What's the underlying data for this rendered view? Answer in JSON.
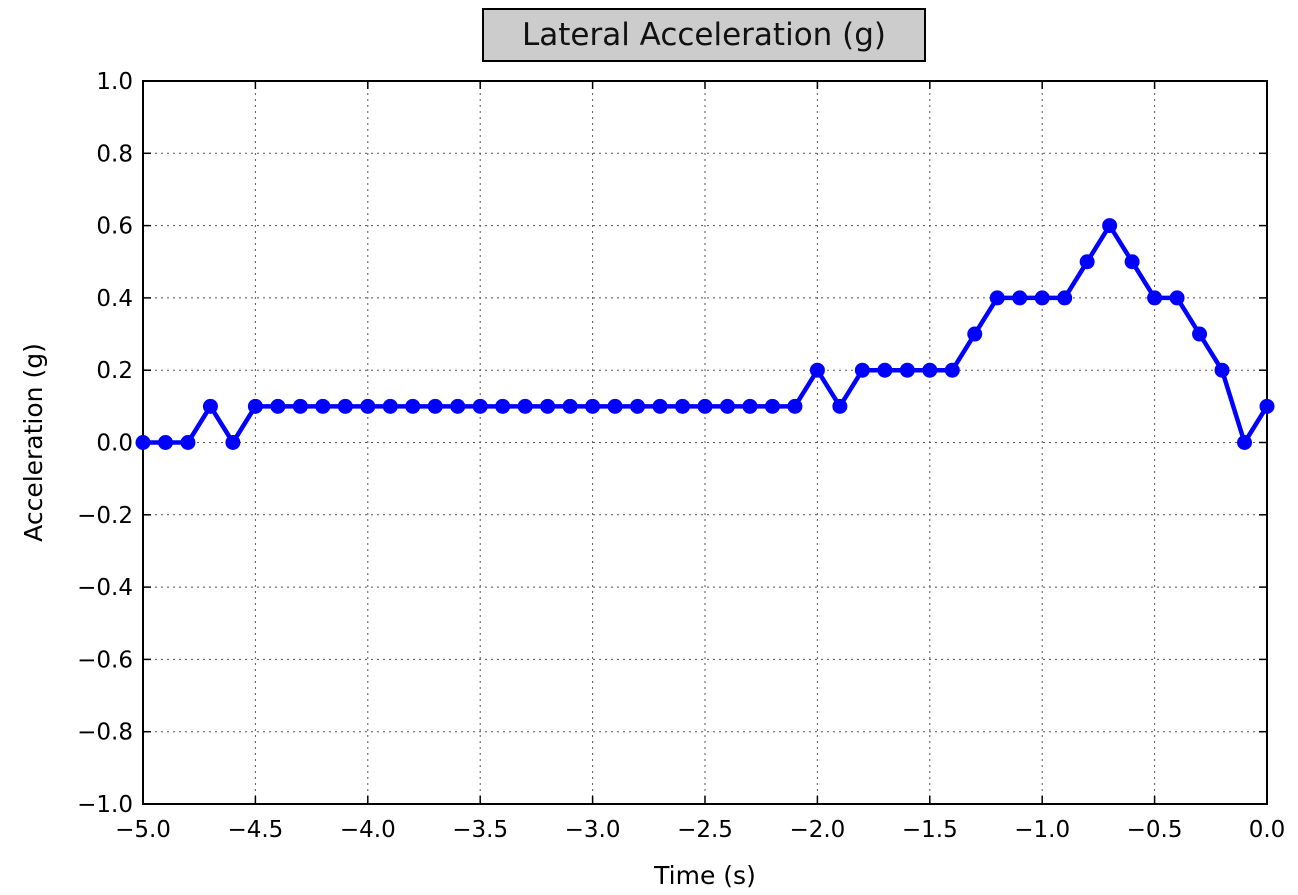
{
  "chart_data": {
    "type": "line",
    "title": "Lateral Acceleration (g)",
    "xlabel": "Time (s)",
    "ylabel": "Acceleration (g)",
    "xlim": [
      -5.0,
      0.0
    ],
    "ylim": [
      -1.0,
      1.0
    ],
    "grid": true,
    "line_color": "#0000ff",
    "x_ticks": [
      -5.0,
      -4.5,
      -4.0,
      -3.5,
      -3.0,
      -2.5,
      -2.0,
      -1.5,
      -1.0,
      -0.5,
      0.0
    ],
    "x_tick_labels": [
      "−5.0",
      "−4.5",
      "−4.0",
      "−3.5",
      "−3.0",
      "−2.5",
      "−2.0",
      "−1.5",
      "−1.0",
      "−0.5",
      "0.0"
    ],
    "y_ticks": [
      -1.0,
      -0.8,
      -0.6,
      -0.4,
      -0.2,
      0.0,
      0.2,
      0.4,
      0.6,
      0.8,
      1.0
    ],
    "y_tick_labels": [
      "−1.0",
      "−0.8",
      "−0.6",
      "−0.4",
      "−0.2",
      "0.0",
      "0.2",
      "0.4",
      "0.6",
      "0.8",
      "1.0"
    ],
    "x": [
      -5.0,
      -4.9,
      -4.8,
      -4.7,
      -4.6,
      -4.5,
      -4.4,
      -4.3,
      -4.2,
      -4.1,
      -4.0,
      -3.9,
      -3.8,
      -3.7,
      -3.6,
      -3.5,
      -3.4,
      -3.3,
      -3.2,
      -3.1,
      -3.0,
      -2.9,
      -2.8,
      -2.7,
      -2.6,
      -2.5,
      -2.4,
      -2.3,
      -2.2,
      -2.1,
      -2.0,
      -1.9,
      -1.8,
      -1.7,
      -1.6,
      -1.5,
      -1.4,
      -1.3,
      -1.2,
      -1.1,
      -1.0,
      -0.9,
      -0.8,
      -0.7,
      -0.6,
      -0.5,
      -0.4,
      -0.3,
      -0.2,
      -0.1,
      0.0
    ],
    "y": [
      0.0,
      0.0,
      0.0,
      0.1,
      0.0,
      0.1,
      0.1,
      0.1,
      0.1,
      0.1,
      0.1,
      0.1,
      0.1,
      0.1,
      0.1,
      0.1,
      0.1,
      0.1,
      0.1,
      0.1,
      0.1,
      0.1,
      0.1,
      0.1,
      0.1,
      0.1,
      0.1,
      0.1,
      0.1,
      0.1,
      0.2,
      0.1,
      0.2,
      0.2,
      0.2,
      0.2,
      0.2,
      0.3,
      0.4,
      0.4,
      0.4,
      0.4,
      0.5,
      0.6,
      0.5,
      0.4,
      0.4,
      0.3,
      0.2,
      0.0,
      0.1
    ]
  }
}
